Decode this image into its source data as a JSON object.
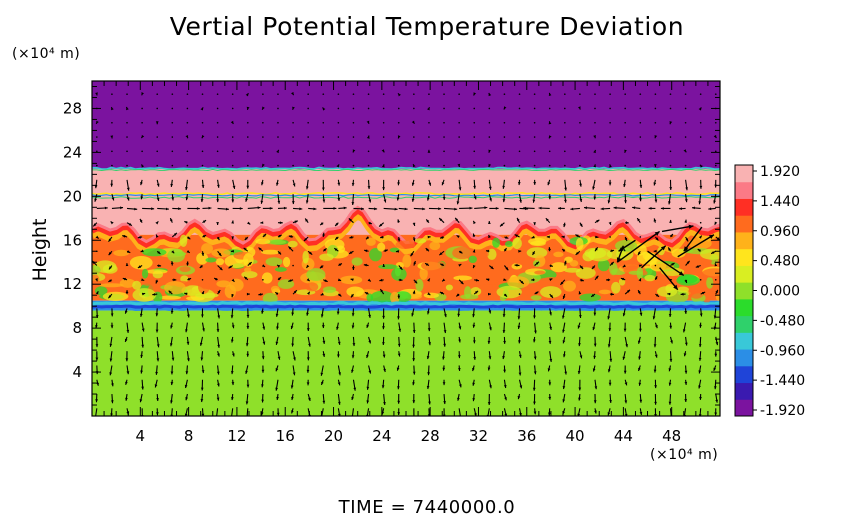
{
  "chart_data": {
    "type": "heatmap",
    "title": "Vertial Potential Temperature Deviation",
    "ylabel": "Height",
    "y_unit_label": "(×10⁴ m)",
    "x_unit_label": "(×10⁴ m)",
    "footer": "TIME  =  7440000.0",
    "xlim": [
      0,
      52
    ],
    "ylim": [
      0,
      30.5
    ],
    "xticks": [
      4,
      8,
      12,
      16,
      20,
      24,
      28,
      32,
      36,
      40,
      44,
      48
    ],
    "yticks": [
      4,
      8,
      12,
      16,
      20,
      24,
      28
    ],
    "colorbar": {
      "ticks": [
        1.92,
        1.44,
        0.96,
        0.48,
        0.0,
        -0.48,
        -0.96,
        -1.44,
        -1.92
      ],
      "labels": [
        "1.920",
        "1.440",
        "0.960",
        "0.480",
        "0.000",
        "-0.480",
        "-0.960",
        "-1.440",
        "-1.920"
      ],
      "vmin": -1.92,
      "vmax": 1.92,
      "colors": [
        "#7b139f",
        "#3a1ab0",
        "#1f44d8",
        "#2b8ee6",
        "#39c8d8",
        "#2fd16b",
        "#2bdc2b",
        "#8fe02a",
        "#d9ee22",
        "#ffe51d",
        "#ffb21a",
        "#ff6b1e",
        "#ff2f24",
        "#fb7a86",
        "#f9b2b2"
      ]
    },
    "layers": [
      {
        "name": "upper layer",
        "y_range": [
          22.5,
          30.5
        ],
        "value": -1.92
      },
      {
        "name": "pink band",
        "y_range": [
          20.2,
          22.5
        ],
        "value": 1.92
      },
      {
        "name": "pink band lower",
        "y_range": [
          16.5,
          20.2
        ],
        "value": 1.92
      },
      {
        "name": "warm mixed layer",
        "y_range": [
          10.5,
          16.5
        ],
        "value": 0.9
      },
      {
        "name": "cool interface",
        "y_range": [
          9.6,
          10.5
        ],
        "value": -0.96
      },
      {
        "name": "neutral lower layer",
        "y_range": [
          0,
          9.6
        ],
        "value": 0.0
      }
    ],
    "legend_position": "right",
    "grid": false
  }
}
